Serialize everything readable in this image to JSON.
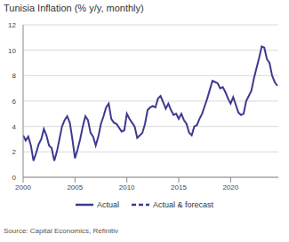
{
  "chart_data": {
    "type": "line",
    "title": "Tunisia Inflation (% y/y, monthly)",
    "source": "Source: Capital Economics, Refinitiv",
    "x": [
      2000,
      2000.25,
      2000.5,
      2000.75,
      2001,
      2001.25,
      2001.5,
      2001.75,
      2002,
      2002.25,
      2002.5,
      2002.75,
      2003,
      2003.25,
      2003.5,
      2003.75,
      2004,
      2004.25,
      2004.5,
      2004.75,
      2005,
      2005.25,
      2005.5,
      2005.75,
      2006,
      2006.25,
      2006.5,
      2006.75,
      2007,
      2007.25,
      2007.5,
      2007.75,
      2008,
      2008.25,
      2008.5,
      2008.75,
      2009,
      2009.25,
      2009.5,
      2009.75,
      2010,
      2010.25,
      2010.5,
      2010.75,
      2011,
      2011.25,
      2011.5,
      2011.75,
      2012,
      2012.25,
      2012.5,
      2012.75,
      2013,
      2013.25,
      2013.5,
      2013.75,
      2014,
      2014.25,
      2014.5,
      2014.75,
      2015,
      2015.25,
      2015.5,
      2015.75,
      2016,
      2016.25,
      2016.5,
      2016.75,
      2017,
      2017.25,
      2017.5,
      2017.75,
      2018,
      2018.25,
      2018.5,
      2018.75,
      2019,
      2019.25,
      2019.5,
      2019.75,
      2020,
      2020.25,
      2020.5,
      2020.75,
      2021,
      2021.25,
      2021.5,
      2021.75,
      2022,
      2022.25,
      2022.5,
      2022.75,
      2023,
      2023.25,
      2023.5,
      2023.75,
      2024,
      2024.25,
      2024.5
    ],
    "series": [
      {
        "name": "Actual",
        "color": "#3d3a8f",
        "line_style": "solid",
        "values": [
          3.3,
          2.9,
          3.2,
          2.5,
          1.3,
          1.9,
          2.6,
          3.0,
          3.8,
          3.3,
          2.5,
          2.3,
          1.3,
          2.0,
          3.0,
          4.0,
          4.5,
          4.8,
          4.3,
          3.0,
          1.5,
          2.2,
          3.0,
          4.0,
          4.8,
          4.5,
          3.5,
          3.2,
          2.5,
          3.2,
          4.2,
          4.8,
          5.5,
          5.8,
          4.6,
          4.3,
          4.2,
          3.9,
          3.6,
          3.7,
          5.0,
          4.6,
          4.3,
          4.0,
          3.1,
          3.3,
          3.5,
          4.2,
          5.3,
          5.5,
          5.6,
          5.5,
          6.2,
          6.4,
          5.9,
          5.4,
          5.8,
          5.3,
          4.9,
          5.0,
          4.6,
          5.0,
          4.5,
          4.2,
          3.5,
          3.3,
          4.0,
          4.1,
          4.6,
          5.0,
          5.6,
          6.2,
          6.9,
          7.6,
          7.5,
          7.4,
          7.0,
          7.1,
          6.7,
          6.2,
          5.8,
          6.3,
          5.7,
          5.1,
          4.9,
          5.0,
          6.0,
          6.4,
          6.8,
          7.8,
          8.6,
          9.4,
          10.3,
          10.2,
          9.3,
          9.0,
          8.0,
          7.5,
          7.2
        ]
      },
      {
        "name": "Actual & forecast",
        "color": "#3d3a8f",
        "line_style": "dashed",
        "values": [
          null,
          null,
          null,
          null,
          null,
          null,
          null,
          null,
          null,
          null,
          null,
          null,
          null,
          null,
          null,
          null,
          null,
          null,
          null,
          null,
          null,
          null,
          null,
          null,
          null,
          null,
          null,
          null,
          null,
          null,
          null,
          null,
          null,
          null,
          null,
          null,
          null,
          null,
          null,
          null,
          null,
          null,
          null,
          null,
          null,
          null,
          null,
          null,
          null,
          null,
          null,
          null,
          null,
          null,
          null,
          null,
          null,
          null,
          null,
          null,
          null,
          null,
          null,
          null,
          null,
          null,
          null,
          null,
          null,
          null,
          null,
          null,
          null,
          null,
          null,
          null,
          null,
          null,
          null,
          null,
          null,
          null,
          null,
          null,
          null,
          null,
          null,
          null,
          null,
          null,
          null,
          null,
          null,
          null,
          null,
          null,
          null,
          null,
          null
        ]
      }
    ],
    "xlim": [
      2000,
      2024.6
    ],
    "xticks": [
      2000,
      2005,
      2010,
      2015,
      2020
    ],
    "ylim": [
      0,
      12
    ],
    "yticks": [
      0,
      2,
      4,
      6,
      8,
      10,
      12
    ],
    "grid": true,
    "legend": "bottom"
  }
}
